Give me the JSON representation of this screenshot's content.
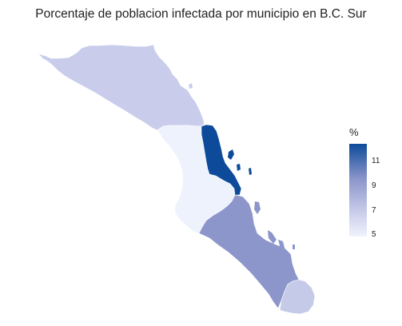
{
  "title": "Porcentaje de poblacion infectada por municipio en B.C. Sur",
  "legend": {
    "title": "%",
    "ticks": [
      {
        "value": 11,
        "label": "11"
      },
      {
        "value": 9,
        "label": "9"
      },
      {
        "value": 7,
        "label": "7"
      },
      {
        "value": 5,
        "label": "5"
      }
    ],
    "range": [
      4.9,
      12.4
    ],
    "colors": {
      "low": "#f0f3fc",
      "mid_low": "#c6cae9",
      "mid_high": "#8c96ca",
      "high": "#0d4a9a"
    }
  },
  "map_data": {
    "type": "choropleth",
    "regions": [
      {
        "id": "mulege",
        "value": 7.0,
        "fill": "#c9cdeb"
      },
      {
        "id": "comondu",
        "value": 5.0,
        "fill": "#eef2fc"
      },
      {
        "id": "loreto",
        "value": 12.4,
        "fill": "#0d4a9a"
      },
      {
        "id": "la-paz",
        "value": 9.0,
        "fill": "#8c96ca"
      },
      {
        "id": "los-cabos",
        "value": 7.0,
        "fill": "#c6cae9"
      }
    ]
  }
}
